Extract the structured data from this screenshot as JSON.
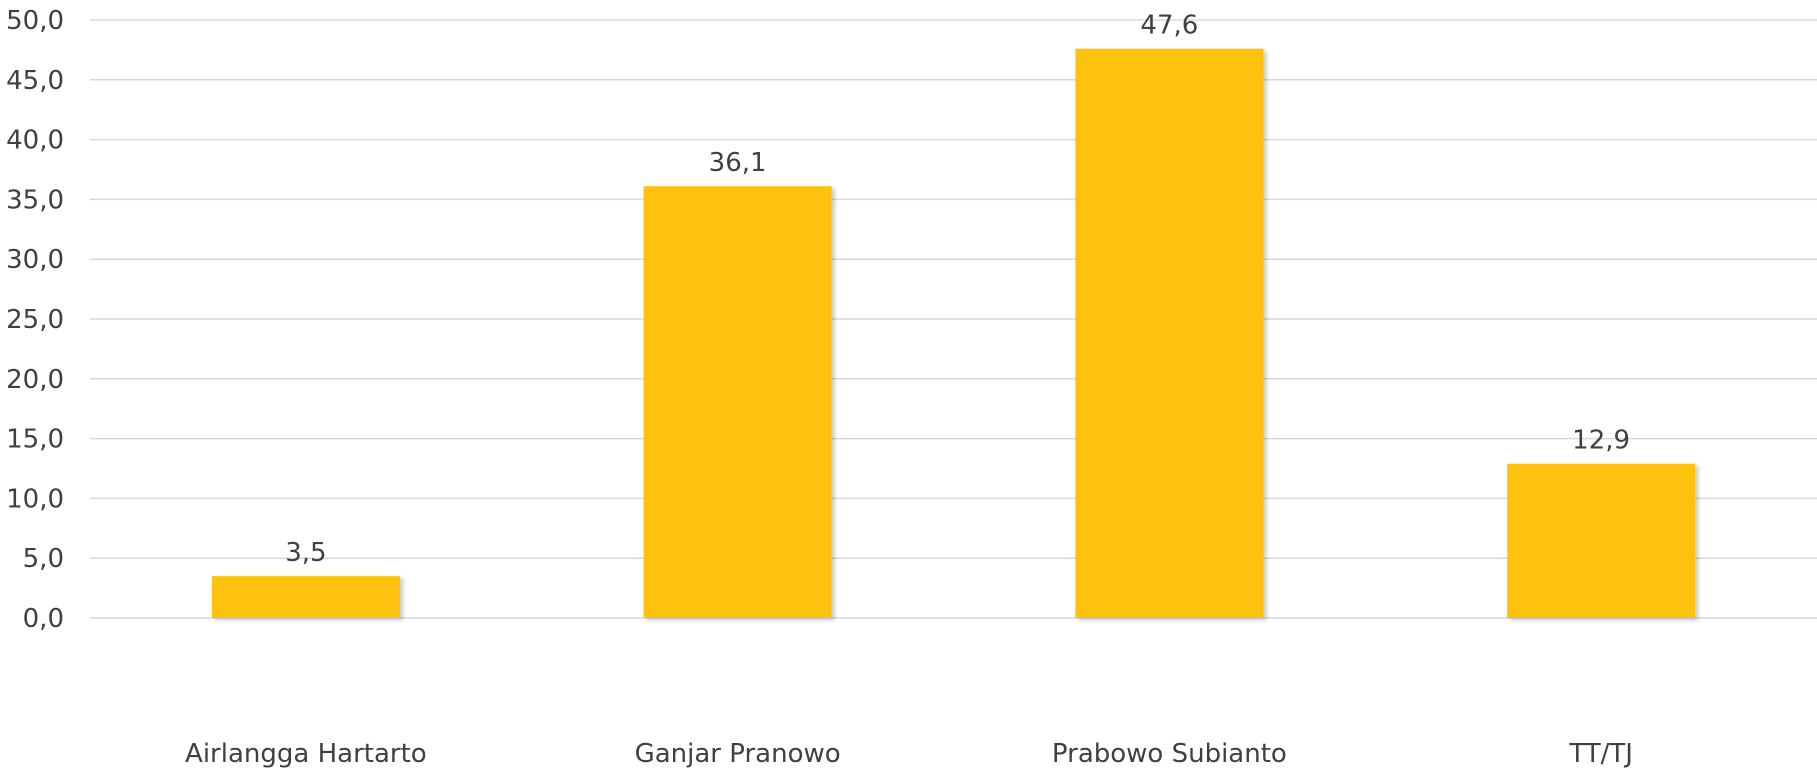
{
  "chart_data": {
    "type": "bar",
    "title": "",
    "xlabel": "",
    "ylabel": "",
    "categories": [
      "Airlangga Hartarto",
      "Ganjar Pranowo",
      "Prabowo Subianto",
      "TT/TJ"
    ],
    "values": [
      3.5,
      36.1,
      47.6,
      12.9
    ],
    "data_labels": [
      "3,5",
      "36,1",
      "47,6",
      "12,9"
    ],
    "ylim": [
      0,
      50
    ],
    "yticks": [
      0,
      5,
      10,
      15,
      20,
      25,
      30,
      35,
      40,
      45,
      50
    ],
    "ytick_labels": [
      "0,0",
      "5,0",
      "10,0",
      "15,0",
      "20,0",
      "25,0",
      "30,0",
      "35,0",
      "40,0",
      "45,0",
      "50,0"
    ],
    "grid": true,
    "legend": "none",
    "colors": {
      "bar": "#FCC20A",
      "grid": "#D9D9D9",
      "text": "#404040"
    }
  }
}
